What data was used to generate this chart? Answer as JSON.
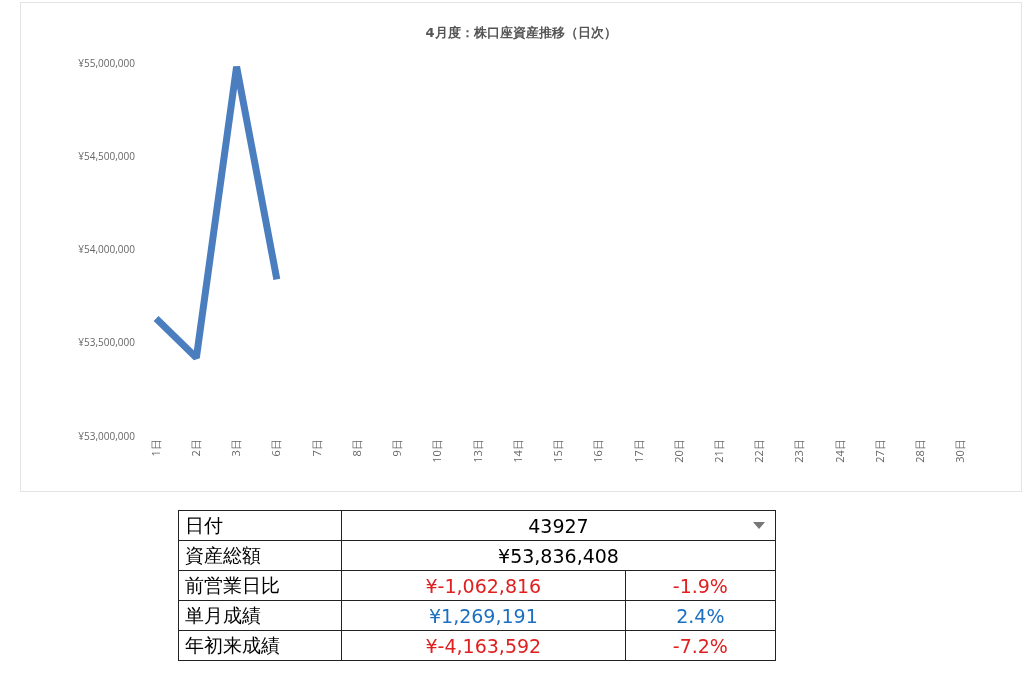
{
  "chart_data": {
    "type": "line",
    "title": "4月度：株口座資産推移（日次）",
    "categories": [
      "1日",
      "2日",
      "3日",
      "6日",
      "7日",
      "8日",
      "9日",
      "10日",
      "13日",
      "14日",
      "15日",
      "16日",
      "17日",
      "20日",
      "21日",
      "22日",
      "23日",
      "24日",
      "27日",
      "28日",
      "30日"
    ],
    "series": [
      {
        "color": "#4a7ebf",
        "values": [
          53630000,
          53420000,
          54980000,
          53840000,
          null,
          null,
          null,
          null,
          null,
          null,
          null,
          null,
          null,
          null,
          null,
          null,
          null,
          null,
          null,
          null,
          null
        ]
      }
    ],
    "ylim": [
      53000000,
      55000000
    ],
    "yticks": [
      {
        "value": 53000000,
        "label": "¥53,000,000"
      },
      {
        "value": 53500000,
        "label": "¥53,500,000"
      },
      {
        "value": 54000000,
        "label": "¥54,000,000"
      },
      {
        "value": 54500000,
        "label": "¥54,500,000"
      },
      {
        "value": 55000000,
        "label": "¥55,000,000"
      }
    ],
    "grid": false,
    "marker": "none",
    "line_style": "solid",
    "annotations": [
      "日付",
      "43927",
      "資産総額",
      "¥53,836,408",
      "前営業日比",
      "¥-1,062,816",
      "-1.9%",
      "単月成績",
      "¥1,269,191",
      "2.4%",
      "年初来成績",
      "¥-4,163,592",
      "-7.2%"
    ]
  }
}
